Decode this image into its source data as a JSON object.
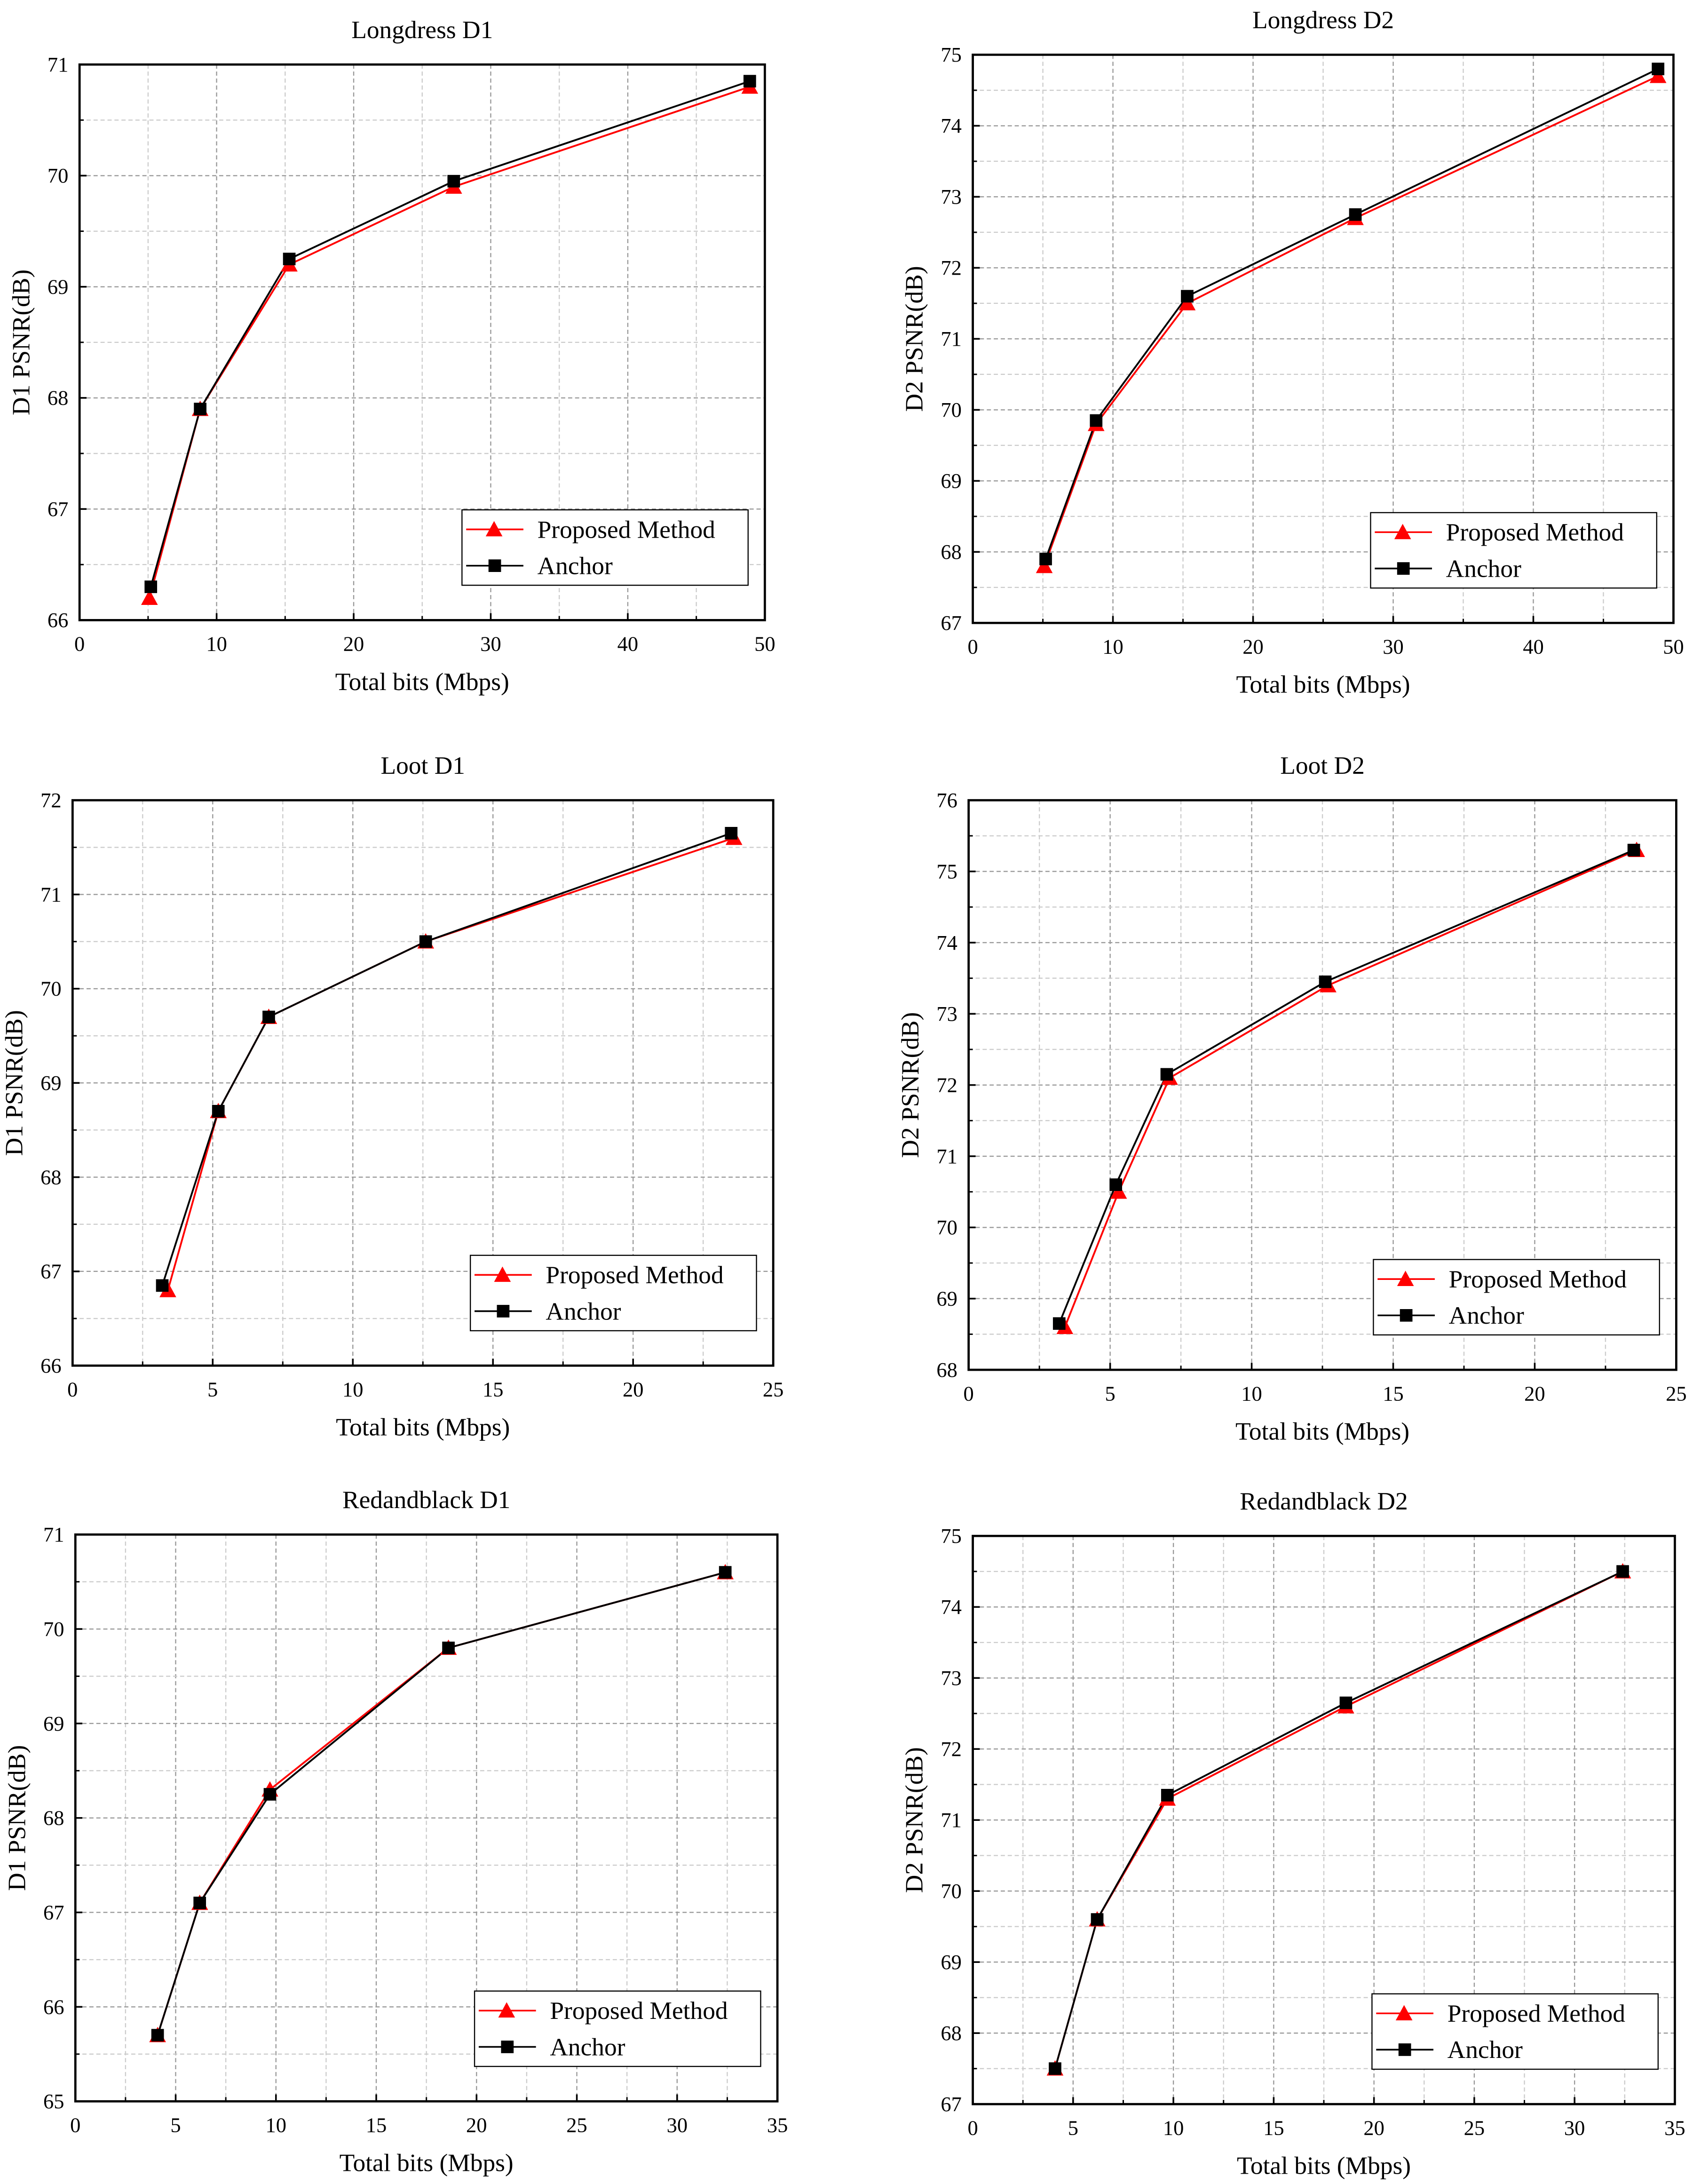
{
  "colors": {
    "proposed": "#ff0000",
    "anchor": "#000000",
    "grid": "#b0b0b0"
  },
  "chart_data": [
    {
      "type": "line",
      "title": "Longdress D1",
      "xlabel": "Total bits (Mbps)",
      "ylabel": "D1 PSNR(dB)",
      "xlim": [
        0,
        50
      ],
      "ylim": [
        66,
        71
      ],
      "xticks": [
        0,
        10,
        20,
        30,
        40,
        50
      ],
      "yticks": [
        66,
        67,
        68,
        69,
        70,
        71
      ],
      "grid": true,
      "legend": "bottom-right",
      "series": [
        {
          "name": "Proposed Method",
          "marker": "triangle",
          "x": [
            5.1,
            8.8,
            15.3,
            27.3,
            48.9
          ],
          "y": [
            66.2,
            67.9,
            69.2,
            69.9,
            70.8
          ]
        },
        {
          "name": "Anchor",
          "marker": "square",
          "x": [
            5.2,
            8.8,
            15.3,
            27.3,
            48.9
          ],
          "y": [
            66.3,
            67.9,
            69.25,
            69.95,
            70.85
          ]
        }
      ]
    },
    {
      "type": "line",
      "title": "Longdress D2",
      "xlabel": "Total bits (Mbps)",
      "ylabel": "D2 PSNR(dB)",
      "xlim": [
        0,
        50
      ],
      "ylim": [
        67,
        75
      ],
      "xticks": [
        0,
        10,
        20,
        30,
        40,
        50
      ],
      "yticks": [
        67,
        68,
        69,
        70,
        71,
        72,
        73,
        74,
        75
      ],
      "grid": true,
      "legend": "bottom-right",
      "series": [
        {
          "name": "Proposed Method",
          "marker": "triangle",
          "x": [
            5.1,
            8.8,
            15.3,
            27.3,
            48.9
          ],
          "y": [
            67.8,
            69.8,
            71.5,
            72.7,
            74.7
          ]
        },
        {
          "name": "Anchor",
          "marker": "square",
          "x": [
            5.2,
            8.8,
            15.3,
            27.3,
            48.9
          ],
          "y": [
            67.9,
            69.85,
            71.6,
            72.75,
            74.8
          ]
        }
      ]
    },
    {
      "type": "line",
      "title": "Loot D1",
      "xlabel": "Total bits (Mbps)",
      "ylabel": "D1 PSNR(dB)",
      "xlim": [
        0,
        25
      ],
      "ylim": [
        66,
        72
      ],
      "xticks": [
        0,
        5,
        10,
        15,
        20,
        25
      ],
      "yticks": [
        66,
        67,
        68,
        69,
        70,
        71,
        72
      ],
      "grid": true,
      "legend": "bottom-right",
      "series": [
        {
          "name": "Proposed Method",
          "marker": "triangle",
          "x": [
            3.4,
            5.2,
            7.0,
            12.6,
            23.6
          ],
          "y": [
            66.8,
            68.7,
            69.7,
            70.5,
            71.6
          ]
        },
        {
          "name": "Anchor",
          "marker": "square",
          "x": [
            3.2,
            5.2,
            7.0,
            12.6,
            23.5
          ],
          "y": [
            66.85,
            68.7,
            69.7,
            70.5,
            71.65
          ]
        }
      ]
    },
    {
      "type": "line",
      "title": "Loot D2",
      "xlabel": "Total bits (Mbps)",
      "ylabel": "D2 PSNR(dB)",
      "xlim": [
        0,
        25
      ],
      "ylim": [
        68,
        76
      ],
      "xticks": [
        0,
        5,
        10,
        15,
        20,
        25
      ],
      "yticks": [
        68,
        69,
        70,
        71,
        72,
        73,
        74,
        75,
        76
      ],
      "grid": true,
      "legend": "bottom-right",
      "series": [
        {
          "name": "Proposed Method",
          "marker": "triangle",
          "x": [
            3.4,
            5.3,
            7.1,
            12.7,
            23.6
          ],
          "y": [
            68.6,
            70.5,
            72.1,
            73.4,
            75.3
          ]
        },
        {
          "name": "Anchor",
          "marker": "square",
          "x": [
            3.2,
            5.2,
            7.0,
            12.6,
            23.5
          ],
          "y": [
            68.65,
            70.6,
            72.15,
            73.45,
            75.3
          ]
        }
      ]
    },
    {
      "type": "line",
      "title": "Redandblack D1",
      "xlabel": "Total bits (Mbps)",
      "ylabel": "D1 PSNR(dB)",
      "xlim": [
        0,
        35
      ],
      "ylim": [
        65,
        71
      ],
      "xticks": [
        0,
        5,
        10,
        15,
        20,
        25,
        30,
        35
      ],
      "yticks": [
        65,
        66,
        67,
        68,
        69,
        70,
        71
      ],
      "grid": true,
      "legend": "bottom-right",
      "series": [
        {
          "name": "Proposed Method",
          "marker": "triangle",
          "x": [
            4.1,
            6.2,
            9.7,
            18.6,
            32.4
          ],
          "y": [
            65.7,
            67.1,
            68.3,
            69.8,
            70.6
          ]
        },
        {
          "name": "Anchor",
          "marker": "square",
          "x": [
            4.1,
            6.2,
            9.7,
            18.6,
            32.4
          ],
          "y": [
            65.7,
            67.1,
            68.25,
            69.8,
            70.6
          ]
        }
      ]
    },
    {
      "type": "line",
      "title": "Redandblack D2",
      "xlabel": "Total bits (Mbps)",
      "ylabel": "D2 PSNR(dB)",
      "xlim": [
        0,
        35
      ],
      "ylim": [
        67,
        75
      ],
      "xticks": [
        0,
        5,
        10,
        15,
        20,
        25,
        30,
        35
      ],
      "yticks": [
        67,
        68,
        69,
        70,
        71,
        72,
        73,
        74,
        75
      ],
      "grid": true,
      "legend": "bottom-right",
      "series": [
        {
          "name": "Proposed Method",
          "marker": "triangle",
          "x": [
            4.1,
            6.2,
            9.7,
            18.6,
            32.4
          ],
          "y": [
            67.5,
            69.6,
            71.3,
            72.6,
            74.5
          ]
        },
        {
          "name": "Anchor",
          "marker": "square",
          "x": [
            4.1,
            6.2,
            9.7,
            18.6,
            32.4
          ],
          "y": [
            67.5,
            69.6,
            71.35,
            72.65,
            74.5
          ]
        }
      ]
    }
  ]
}
